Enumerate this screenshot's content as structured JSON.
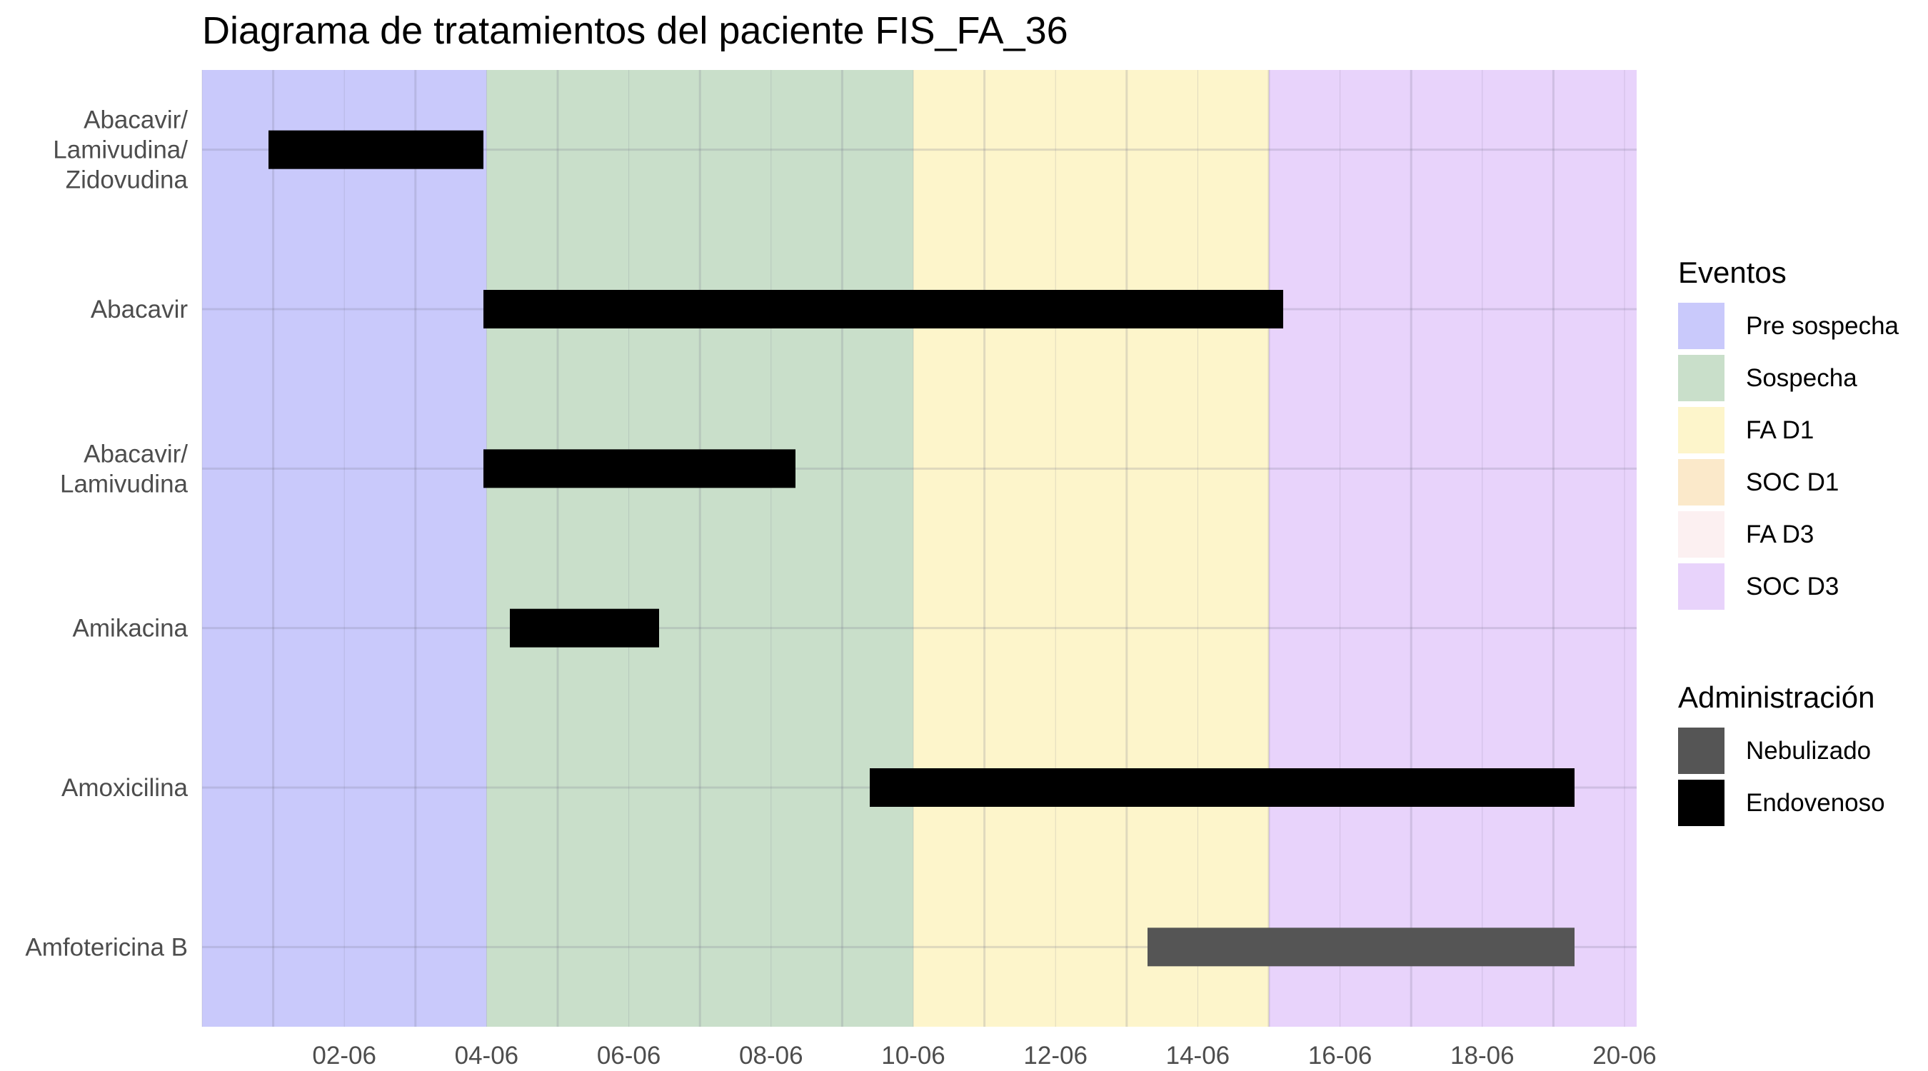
{
  "chart_data": {
    "type": "gantt",
    "title": "Diagrama de tratamientos del paciente FIS_FA_36",
    "xlabel": "",
    "ylabel": "",
    "x_axis": {
      "type": "date",
      "range": [
        "2023-05-31",
        "2023-06-20"
      ],
      "ticks": [
        {
          "date": "2023-06-02",
          "label": "02-06"
        },
        {
          "date": "2023-06-04",
          "label": "04-06"
        },
        {
          "date": "2023-06-06",
          "label": "06-06"
        },
        {
          "date": "2023-06-08",
          "label": "08-06"
        },
        {
          "date": "2023-06-10",
          "label": "10-06"
        },
        {
          "date": "2023-06-12",
          "label": "12-06"
        },
        {
          "date": "2023-06-14",
          "label": "14-06"
        },
        {
          "date": "2023-06-16",
          "label": "16-06"
        },
        {
          "date": "2023-06-18",
          "label": "18-06"
        },
        {
          "date": "2023-06-20",
          "label": "20-06"
        }
      ],
      "grid": true
    },
    "categories": [
      {
        "label": "Abacavir/\nLamivudina/\nZidovudina"
      },
      {
        "label": "Abacavir"
      },
      {
        "label": "Abacavir/\nLamivudina"
      },
      {
        "label": "Amikacina"
      },
      {
        "label": "Amoxicilina"
      },
      {
        "label": "Amfotericina B"
      }
    ],
    "bars": [
      {
        "category": "Abacavir/\nLamivudina/\nZidovudina",
        "start": "2023-06-01",
        "end": "2023-06-04",
        "administracion": "Endovenoso"
      },
      {
        "category": "Abacavir",
        "start": "2023-06-04",
        "end": "2023-06-15",
        "administracion": "Endovenoso"
      },
      {
        "category": "Abacavir/\nLamivudina",
        "start": "2023-06-04",
        "end": "2023-06-08",
        "administracion": "Endovenoso"
      },
      {
        "category": "Amikacina",
        "start": "2023-06-04",
        "end": "2023-06-06",
        "administracion": "Endovenoso"
      },
      {
        "category": "Amoxicilina",
        "start": "2023-06-09",
        "end": "2023-06-19",
        "administracion": "Endovenoso"
      },
      {
        "category": "Amfotericina B",
        "start": "2023-06-13",
        "end": "2023-06-19",
        "administracion": "Nebulizado"
      }
    ],
    "event_bands": [
      {
        "evento": "Pre sospecha",
        "start": "2023-05-31",
        "end": "2023-06-04"
      },
      {
        "evento": "Sospecha",
        "start": "2023-06-04",
        "end": "2023-06-10"
      },
      {
        "evento": "FA D1",
        "start": "2023-06-10",
        "end": "2023-06-15"
      },
      {
        "evento": "SOC D3",
        "start": "2023-06-15",
        "end": "2023-06-20"
      }
    ],
    "legends": [
      {
        "title": "Eventos",
        "placement": "right",
        "items": [
          {
            "label": "Pre sospecha",
            "color": "#c9c9fb"
          },
          {
            "label": "Sospecha",
            "color": "#c9dfca"
          },
          {
            "label": "FA D1",
            "color": "#fdf5cb"
          },
          {
            "label": "SOC D1",
            "color": "#fbe9ca"
          },
          {
            "label": "FA D3",
            "color": "#fcf0f1"
          },
          {
            "label": "SOC D3",
            "color": "#e8d3fb"
          }
        ]
      },
      {
        "title": "Administración",
        "placement": "right",
        "items": [
          {
            "label": "Nebulizado",
            "color": "#555555"
          },
          {
            "label": "Endovenoso",
            "color": "#000000"
          }
        ]
      }
    ]
  }
}
